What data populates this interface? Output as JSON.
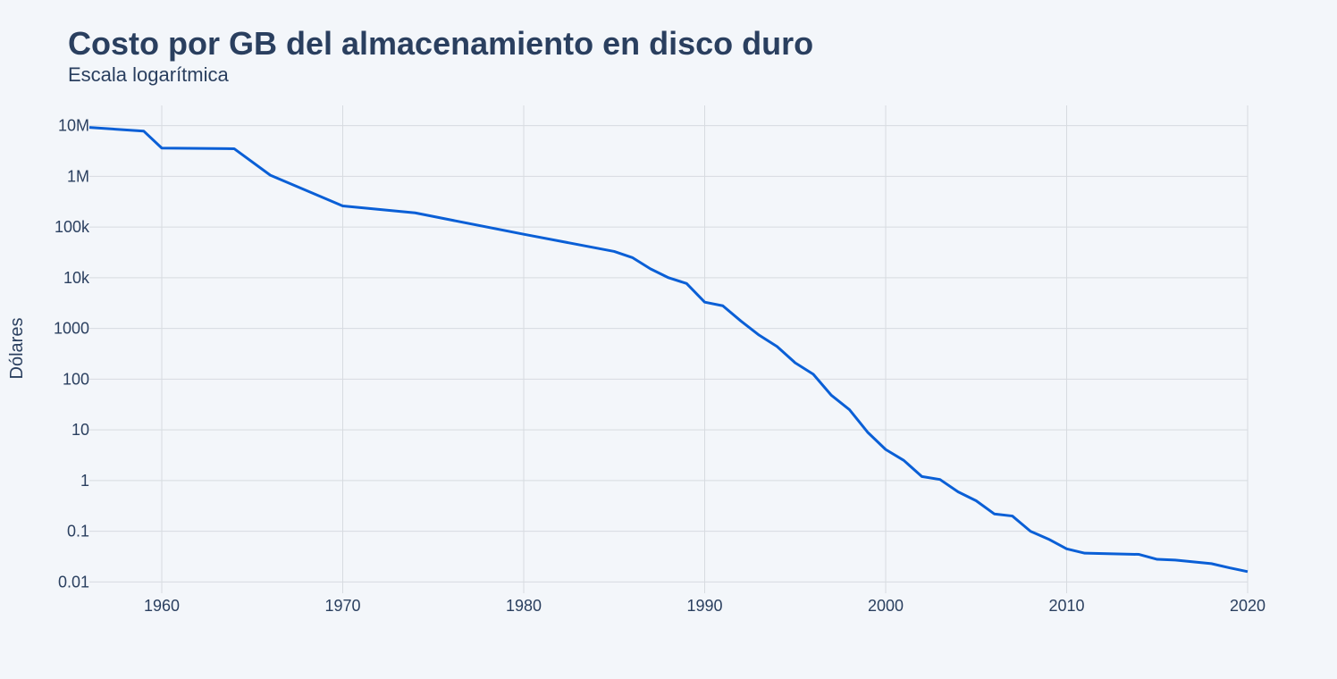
{
  "chart_data": {
    "type": "line",
    "title": "Costo por GB del almacenamiento en disco duro",
    "subtitle": "Escala logarítmica",
    "xlabel": "",
    "ylabel": "Dólares",
    "y_scale": "log",
    "xlim": [
      1956,
      2020
    ],
    "ylim": [
      0.006,
      25000000
    ],
    "x_ticks": [
      1960,
      1970,
      1980,
      1990,
      2000,
      2010,
      2020
    ],
    "x_tick_labels": [
      "1960",
      "1970",
      "1980",
      "1990",
      "2000",
      "2010",
      "2020"
    ],
    "y_ticks": [
      0.01,
      0.1,
      1,
      10,
      100,
      1000,
      10000,
      100000,
      1000000,
      10000000
    ],
    "y_tick_labels": [
      "0.01",
      "0.1",
      "1",
      "10",
      "100",
      "1000",
      "10k",
      "100k",
      "1M",
      "10M"
    ],
    "grid": true,
    "line_color": "#0a5fd6",
    "series": [
      {
        "x": [
          1956,
          1959,
          1960,
          1964,
          1966,
          1970,
          1974,
          1980,
          1985,
          1986,
          1987,
          1988,
          1989,
          1990,
          1991,
          1992,
          1993,
          1994,
          1995,
          1996,
          1997,
          1998,
          1999,
          2000,
          2001,
          2002,
          2003,
          2004,
          2005,
          2006,
          2007,
          2008,
          2009,
          2010,
          2011,
          2014,
          2015,
          2016,
          2017,
          2018,
          2019,
          2020
        ],
        "y": [
          9200000,
          7800000,
          3600000,
          3500000,
          1050000,
          260000,
          190000,
          72000,
          33000,
          25000,
          15000,
          10000,
          7700,
          3300,
          2800,
          1400,
          740,
          440,
          210,
          125,
          48,
          25,
          9,
          4.1,
          2.5,
          1.2,
          1.05,
          0.6,
          0.4,
          0.22,
          0.2,
          0.1,
          0.07,
          0.045,
          0.037,
          0.035,
          0.028,
          0.027,
          0.025,
          0.023,
          0.019,
          0.016
        ]
      }
    ]
  }
}
